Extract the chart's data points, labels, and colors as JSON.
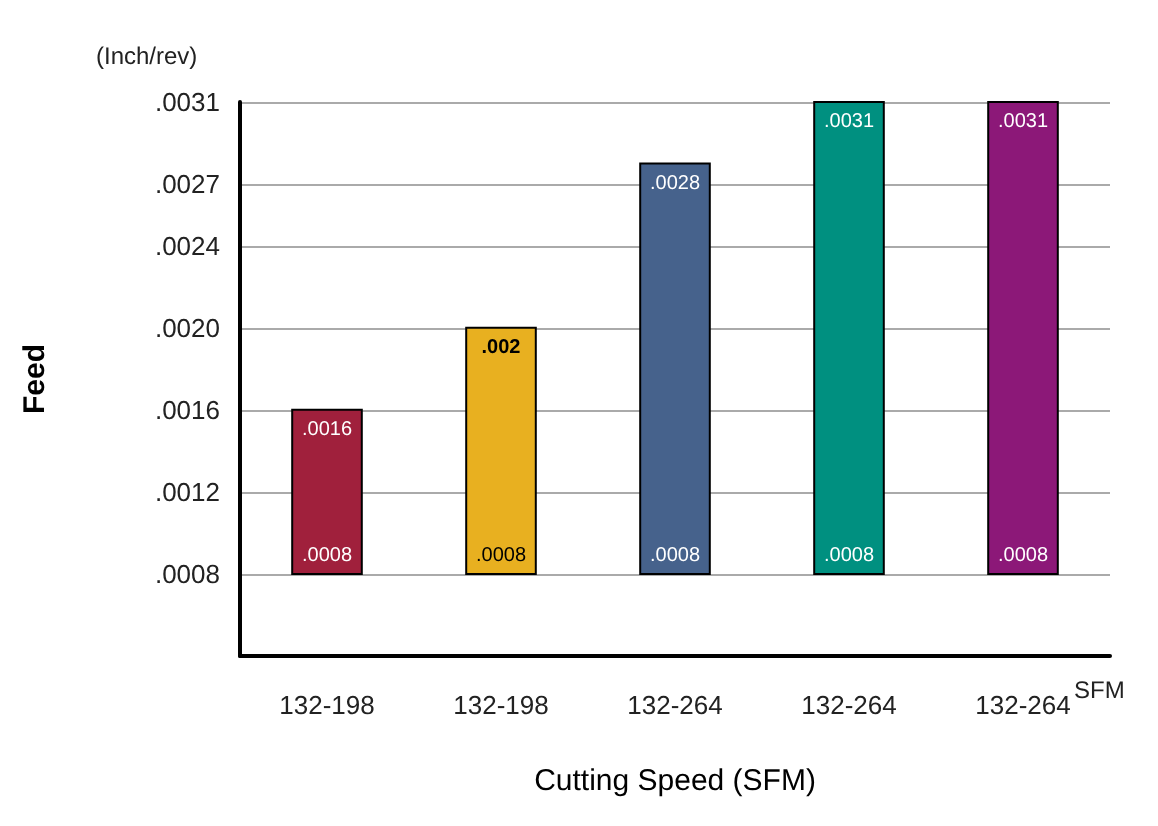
{
  "chart_data": {
    "type": "bar",
    "xlabel": "Cutting Speed (SFM)",
    "ylabel": "Feed",
    "categories": [
      "132-198",
      "132-198",
      "132-264",
      "132-264",
      "132-264"
    ],
    "values": [
      0.0008,
      0.0012,
      0.002,
      0.0023,
      0.0023
    ],
    "base": [
      0.0008,
      0.0008,
      0.0008,
      0.0008,
      0.0008
    ],
    "value_labels": [
      ".0016",
      ".002",
      ".0028",
      ".0031",
      ".0031"
    ],
    "colors": [
      "#a0203c",
      "#e8b020",
      "#46628c",
      "#009080",
      "#8c1878"
    ],
    "ylim": [
      0.0004,
      0.0031
    ],
    "yticks": [
      {
        "value": 0.0008,
        "label": ".0008"
      },
      {
        "value": 0.0012,
        "label": ".0012"
      },
      {
        "value": 0.0016,
        "label": ".0016"
      },
      {
        "value": 0.002,
        "label": ".0020"
      },
      {
        "value": 0.0024,
        "label": ".0024"
      },
      {
        "value": 0.0027,
        "label": ".0027"
      },
      {
        "value": 0.0031,
        "label": ".0031"
      }
    ],
    "grid": "y",
    "annotations": [
      "(Inch/rev)",
      "SFM",
      ".0008",
      ".0008",
      ".0008",
      ".0008",
      ".0008"
    ]
  }
}
